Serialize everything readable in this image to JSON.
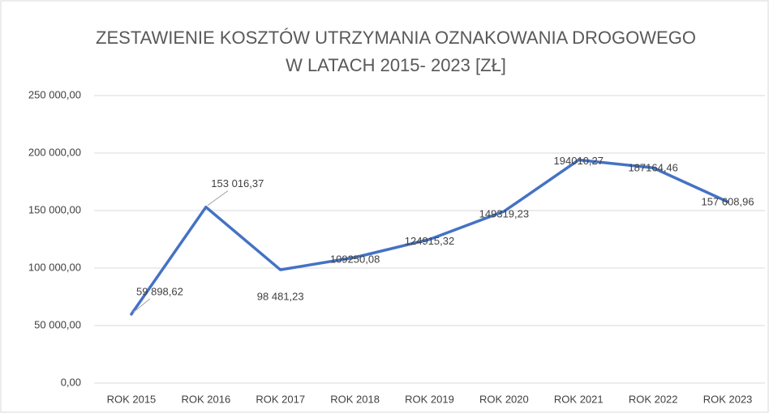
{
  "chart_data": {
    "type": "line",
    "title": [
      "ZESTAWIENIE KOSZTÓW UTRZYMANIA OZNAKOWANIA DROGOWEGO",
      "W LATACH 2015- 2023 [ZŁ]"
    ],
    "categories": [
      "ROK 2015",
      "ROK 2016",
      "ROK 2017",
      "ROK 2018",
      "ROK 2019",
      "ROK 2020",
      "ROK 2021",
      "ROK 2022",
      "ROK 2023"
    ],
    "values": [
      59898.62,
      153016.37,
      98481.23,
      109250.08,
      124915.32,
      149319.23,
      194010.27,
      187164.46,
      157608.96
    ],
    "value_labels": [
      "59 898,62",
      "153 016,37",
      "98 481,23",
      "109250,08",
      "124915,32",
      "149319,23",
      "194010,27",
      "187164,46",
      "157 608,96"
    ],
    "color": "#4472c4",
    "ylim": [
      0,
      250000
    ],
    "yticks": [
      {
        "value": 0,
        "label": "0,00"
      },
      {
        "value": 50000,
        "label": "50 000,00"
      },
      {
        "value": 100000,
        "label": "100 000,00"
      },
      {
        "value": 150000,
        "label": "150 000,00"
      },
      {
        "value": 200000,
        "label": "200 000,00"
      },
      {
        "value": 250000,
        "label": "250 000,00"
      }
    ],
    "grid": true
  }
}
